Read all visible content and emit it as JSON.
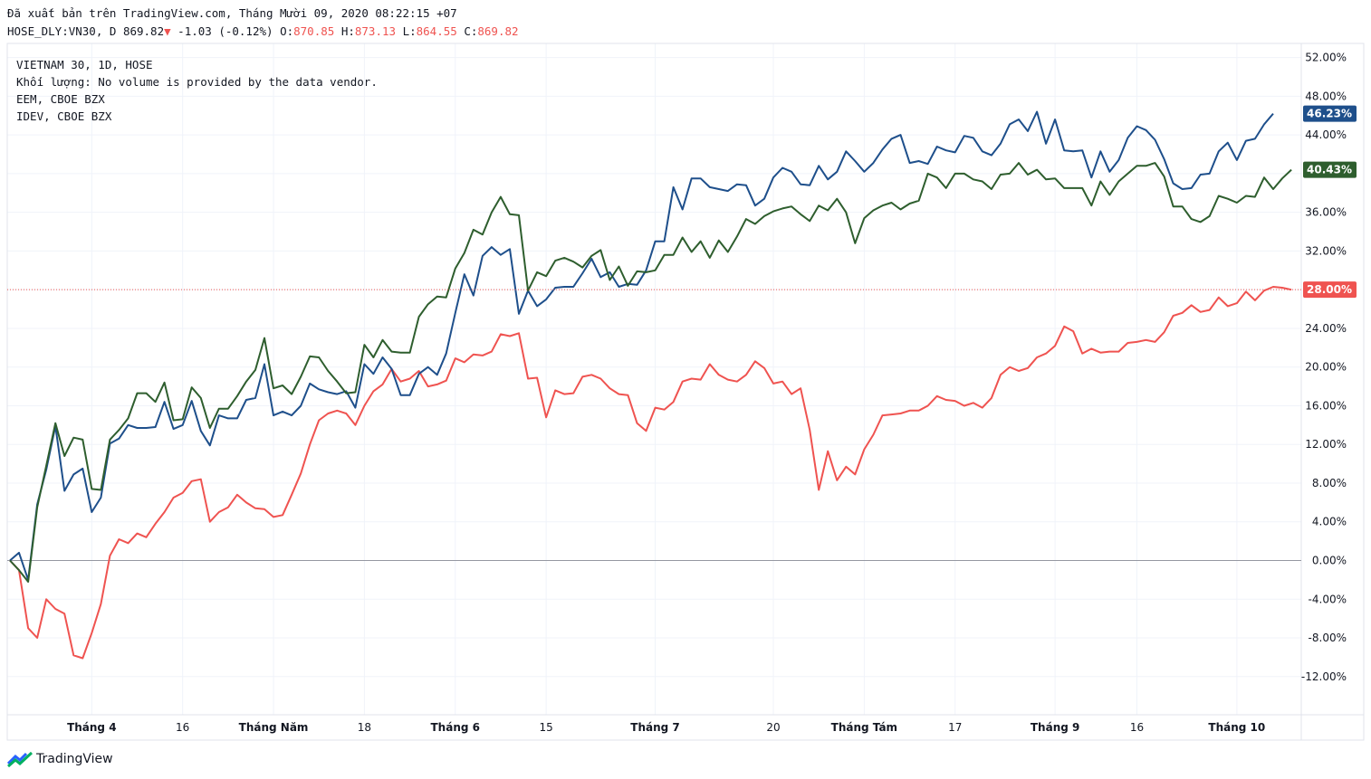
{
  "header": {
    "published": "Đã xuất bản trên TradingView.com, Tháng Mười 09, 2020 08:22:15 +07",
    "symbol": "HOSE_DLY:VN30, D",
    "price": "869.82",
    "change": "-1.03 (-0.12%)",
    "o_label": "O:",
    "o": "870.85",
    "h_label": "H:",
    "h": "873.13",
    "l_label": "L:",
    "l": "864.55",
    "c_label": "C:",
    "c": "869.82"
  },
  "legend": {
    "line1": "VIETNAM 30, 1D, HOSE",
    "line2": "Khối lượng: No volume is provided by the data vendor.",
    "line3": "EEM, CBOE BZX",
    "line4": "IDEV, CBOE BZX"
  },
  "brand": "TradingView",
  "chart_data": {
    "type": "line",
    "ylim": [
      -15,
      54
    ],
    "yticks": [
      52,
      48,
      44,
      40,
      36,
      32,
      28,
      24,
      20,
      16,
      12,
      8,
      4,
      0,
      -4,
      -8,
      -12
    ],
    "ytick_labels": [
      "52.00%",
      "48.00%",
      "44.00%",
      "40.00%",
      "36.00%",
      "32.00%",
      "28.00%",
      "24.00%",
      "20.00%",
      "16.00%",
      "12.00%",
      "8.00%",
      "4.00%",
      "0.00%",
      "-4.00%",
      "-8.00%",
      "-12.00%"
    ],
    "xticks": [
      {
        "label": "Tháng 4",
        "i": 9,
        "bold": true
      },
      {
        "label": "16",
        "i": 19,
        "bold": false
      },
      {
        "label": "Tháng Năm",
        "i": 29,
        "bold": true
      },
      {
        "label": "18",
        "i": 39,
        "bold": false
      },
      {
        "label": "Tháng 6",
        "i": 49,
        "bold": true
      },
      {
        "label": "15",
        "i": 59,
        "bold": false
      },
      {
        "label": "Tháng 7",
        "i": 71,
        "bold": true
      },
      {
        "label": "20",
        "i": 84,
        "bold": false
      },
      {
        "label": "Tháng Tám",
        "i": 94,
        "bold": true
      },
      {
        "label": "17",
        "i": 104,
        "bold": false
      },
      {
        "label": "Tháng 9",
        "i": 115,
        "bold": true
      },
      {
        "label": "16",
        "i": 124,
        "bold": false
      },
      {
        "label": "Tháng 10",
        "i": 135,
        "bold": true
      }
    ],
    "n_points": 140,
    "series": [
      {
        "color": "#ef5350",
        "last_label": "28.00%",
        "values": [
          0,
          -1,
          -7,
          -8,
          -4,
          -5,
          -5.5,
          -9.8,
          -10.1,
          -7.5,
          -4.5,
          0.5,
          2.2,
          1.8,
          2.8,
          2.4,
          3.8,
          5,
          6.5,
          7,
          8.2,
          8.4,
          4,
          5,
          5.5,
          6.8,
          6,
          5.4,
          5.3,
          4.5,
          4.7,
          6.8,
          9,
          12,
          14.5,
          15.2,
          15.5,
          15.2,
          14,
          16,
          17.5,
          18.2,
          19.8,
          18.5,
          18.8,
          19.6,
          18,
          18.2,
          18.6,
          20.9,
          20.5,
          21.3,
          21.2,
          21.6,
          23.4,
          23.2,
          23.5,
          18.8,
          18.9,
          14.8,
          17.6,
          17.2,
          17.3,
          19,
          19.2,
          18.8,
          17.8,
          17.2,
          17.1,
          14.2,
          13.4,
          15.8,
          15.6,
          16.4,
          18.5,
          18.8,
          18.7,
          20.3,
          19.2,
          18.7,
          18.5,
          19.2,
          20.6,
          19.9,
          18.3,
          18.5,
          17.2,
          17.8,
          13.5,
          7.3,
          11.3,
          8.3,
          9.7,
          8.9,
          11.5,
          13,
          15,
          15.1,
          15.2,
          15.5,
          15.5,
          16,
          17,
          16.6,
          16.5,
          16,
          16.3,
          15.8,
          16.8,
          19.2,
          20,
          19.6,
          19.9,
          21,
          21.4,
          22.2,
          24.2,
          23.7,
          21.4,
          21.9,
          21.5,
          21.6,
          21.6,
          22.5,
          22.6,
          22.8,
          22.6,
          23.6,
          25.3,
          25.6,
          26.4,
          25.7,
          25.9,
          27.2,
          26.3,
          26.6,
          27.8,
          26.9,
          27.9,
          28.3,
          28.2,
          28
        ]
      },
      {
        "color": "#1e4f8b",
        "last_label": "46.23%",
        "values": [
          0,
          0.8,
          -2,
          5.8,
          9.4,
          13.9,
          7.2,
          8.9,
          9.5,
          5,
          6.5,
          12.1,
          12.6,
          14,
          13.7,
          13.7,
          13.8,
          16.4,
          13.6,
          14,
          16.5,
          13.4,
          11.9,
          15,
          14.7,
          14.7,
          16.6,
          16.8,
          20.3,
          15,
          15.4,
          15,
          16,
          18.3,
          17.7,
          17.4,
          17.2,
          17.5,
          15.8,
          20.3,
          19.3,
          21,
          19.8,
          17.1,
          17.1,
          19.3,
          20,
          19.2,
          21.4,
          25.6,
          29.6,
          27.4,
          31.5,
          32.4,
          31.6,
          32.2,
          25.5,
          27.9,
          26.3,
          27,
          28.2,
          28.3,
          28.3,
          29.7,
          31.2,
          29.3,
          29.8,
          28.3,
          28.6,
          28.5,
          30,
          33,
          33,
          38.6,
          36.3,
          39.5,
          39.5,
          38.6,
          38.4,
          38.2,
          38.9,
          38.8,
          36.7,
          37.4,
          39.6,
          40.6,
          40.2,
          38.9,
          38.8,
          40.8,
          39.4,
          40.2,
          42.3,
          41.3,
          40.2,
          41.1,
          42.5,
          43.6,
          44,
          41.1,
          41.3,
          41,
          42.8,
          42.4,
          42.2,
          43.9,
          43.7,
          42.3,
          41.9,
          43.1,
          45.1,
          45.6,
          44.4,
          46.4,
          43.1,
          45.6,
          42.4,
          42.3,
          42.4,
          39.6,
          42.3,
          40.2,
          41.4,
          43.7,
          44.9,
          44.5,
          43.5,
          41.5,
          39,
          38.4,
          38.5,
          39.9,
          40,
          42.3,
          43.2,
          41.4,
          43.4,
          43.6,
          45.1,
          46.2
        ]
      },
      {
        "color": "#2e5e2e",
        "last_label": "40.43%",
        "values": [
          0,
          -1,
          -2.2,
          5.5,
          9.8,
          14.2,
          10.8,
          12.7,
          12.5,
          7.4,
          7.3,
          12.5,
          13.5,
          14.7,
          17.3,
          17.3,
          16.4,
          18.4,
          14.5,
          14.6,
          17.9,
          16.8,
          13.7,
          15.7,
          15.7,
          17,
          18.5,
          19.7,
          23,
          17.8,
          18.1,
          17.2,
          19,
          21.1,
          21,
          19.6,
          18.5,
          17.3,
          17.4,
          22.3,
          21,
          22.8,
          21.6,
          21.5,
          21.5,
          25.2,
          26.5,
          27.3,
          27.2,
          30.2,
          31.8,
          34.2,
          33.7,
          36,
          37.6,
          35.8,
          35.7,
          27.9,
          29.8,
          29.4,
          31,
          31.3,
          30.9,
          30.3,
          31.5,
          32.1,
          29,
          30.4,
          28.4,
          29.9,
          29.8,
          30,
          31.6,
          31.6,
          33.4,
          31.9,
          33,
          31.3,
          33.1,
          31.9,
          33.5,
          35.3,
          34.8,
          35.6,
          36.1,
          36.4,
          36.6,
          35.8,
          35.1,
          36.7,
          36.2,
          37.4,
          36,
          32.8,
          35.4,
          36.2,
          36.7,
          37,
          36.3,
          36.9,
          37.2,
          40,
          39.6,
          38.5,
          40,
          40,
          39.4,
          39.2,
          38.4,
          39.9,
          40,
          41.1,
          39.9,
          40.4,
          39.4,
          39.5,
          38.5,
          38.5,
          38.5,
          36.7,
          39.2,
          37.8,
          39.2,
          40,
          40.8,
          40.8,
          41.1,
          39.7,
          36.6,
          36.6,
          35.3,
          35,
          35.6,
          37.7,
          37.4,
          37,
          37.7,
          37.6,
          39.6,
          38.4,
          39.5,
          40.4
        ]
      }
    ]
  }
}
